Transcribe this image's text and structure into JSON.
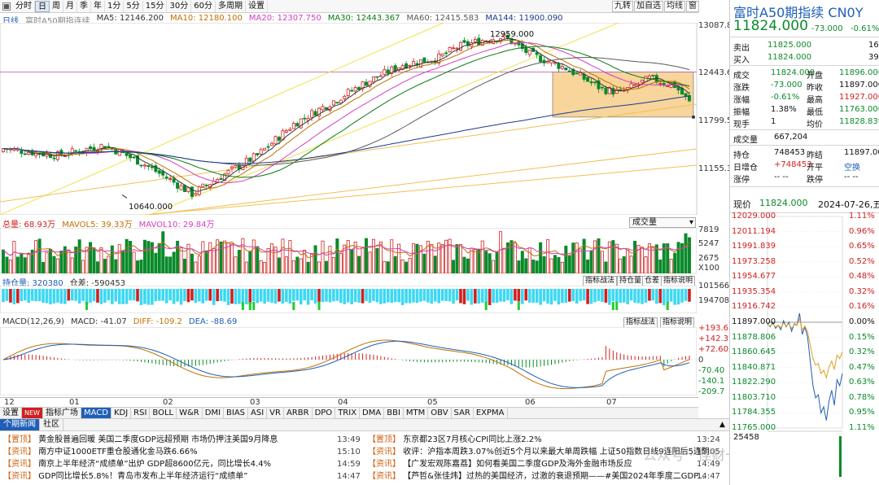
{
  "toolbar": {
    "tabs": [
      "分时",
      "日",
      "周",
      "月",
      "季",
      "年",
      "1分",
      "5分",
      "15分",
      "30分",
      "60分",
      "多周期",
      "设置"
    ],
    "active": "日",
    "right_tools": [
      "九转",
      "加自选",
      "均线",
      "窗"
    ]
  },
  "main_legend": {
    "period": "日线",
    "name": "富时A50期指连续",
    "ma5": "MA5: 12146.200",
    "ma10": "MA10: 12180.100",
    "ma20": "MA20: 12307.750",
    "ma30": "MA30: 12443.367",
    "ma60": "MA60: 12415.583",
    "ma144": "MA144: 11900.090"
  },
  "price_axis": [
    "13087.83",
    "12443.66",
    "11799.50",
    "11155.33"
  ],
  "annotations": {
    "high": "12959.000",
    "low": "10640.000"
  },
  "volume": {
    "legend": {
      "total": "总量: 68.93万",
      "mavol5": "MAVOL5: 39.33万",
      "mavol10": "MAVOL10: 29.84万"
    },
    "dropdown": "成交量",
    "axis": [
      "7819",
      "5247",
      "2675",
      "X100"
    ]
  },
  "oi": {
    "legend": {
      "oi": "持仓量: 320380",
      "diff": "仓差: -590453"
    },
    "buttons": [
      "指标战法",
      "持仓量",
      "仓差",
      "指标说明"
    ],
    "axis": [
      "1015661",
      "194708"
    ]
  },
  "macd": {
    "legend": {
      "params": "MACD(12,26,9)",
      "macd": "MACD: -41.07",
      "diff": "DIFF: -109.2",
      "dea": "DEA: -88.69"
    },
    "buttons": [
      "指标战法",
      "指标说明"
    ],
    "axis": [
      "+193.6",
      "+142.3",
      "+72.60",
      "0",
      "-70.40",
      "-140.1",
      "-209.7"
    ]
  },
  "time_axis": [
    "12",
    "01",
    "02",
    "03",
    "04",
    "05",
    "06",
    "07"
  ],
  "indicator_tabs": [
    "设置",
    "NEW",
    "指标广场",
    "MACD",
    "KDJ",
    "RSI",
    "BOLL",
    "W&R",
    "DMI",
    "BIAS",
    "ASI",
    "VR",
    "ARBR",
    "DPO",
    "TRIX",
    "DMA",
    "BBI",
    "MTM",
    "OBV",
    "SAR",
    "EXPMA"
  ],
  "indicator_active": "MACD",
  "news": {
    "tabs": [
      "个期新闻",
      "社区"
    ],
    "left": [
      {
        "tag": "【置顶】",
        "text": "黄金股普遍回暖 美国二季度GDP远超预期 市场仍押注美国9月降息",
        "time": "13:49"
      },
      {
        "tag": "【资讯】",
        "text": "南方中证1000ETF重仓股通化金马跌6.66%",
        "time": "15:10"
      },
      {
        "tag": "【资讯】",
        "text": "南京上半年经济“成绩单”出炉 GDP超8600亿元，同比增长4.4%",
        "time": "14:59"
      },
      {
        "tag": "【资讯】",
        "text": "GDP同比增长5.8%！青岛市发布上半年经济运行“成绩单”",
        "time": "14:47"
      }
    ],
    "right": [
      {
        "tag": "【置顶】",
        "text": "东京都23区7月核心CPI同比上涨2.2%",
        "time": "13:24"
      },
      {
        "tag": "【资讯】",
        "text": "收评：沪指本周跌3.07%创近5个月以来最大单周跌幅 上证50指数日线9连阳后5连阴",
        "time": "15:05"
      },
      {
        "tag": "【资讯】",
        "text": "【广发宏观陈嘉荔】如何看美国二季度GDP及海外金融市场反应",
        "time": "14:49"
      },
      {
        "tag": "【资讯】",
        "text": "【芦哲&张佳炜】过热的美国经济，过激的衰退预期——#美国2024年季度二GDP...",
        "time": "14:47"
      }
    ]
  },
  "watermark": "公众号 · 佳财一分钟",
  "quote": {
    "title": "富时A50期指续 CN0Y",
    "price": "11824.000",
    "change": "-73.000",
    "pct": "-0.61%",
    "sell": {
      "label": "卖出",
      "price": "11825.000",
      "vol": "16"
    },
    "buy": {
      "label": "买入",
      "price": "11824.000",
      "vol": "39"
    },
    "rows": [
      {
        "l1": "成交",
        "v1": "11824.000",
        "l2": "开盘",
        "v2": "11896.000"
      },
      {
        "l1": "涨跌",
        "v1": "-73.000",
        "l2": "昨收",
        "v2": "11897.000"
      },
      {
        "l1": "涨幅",
        "v1": "-0.61%",
        "l2": "最高",
        "v2": "11927.000"
      },
      {
        "l1": "振幅",
        "v1": "1.38%",
        "l2": "最低",
        "v2": "11763.000"
      },
      {
        "l1": "现手",
        "v1": "1",
        "l2": "均价",
        "v2": "11828.839"
      }
    ],
    "volume_label": "成交量",
    "volume": "667,204",
    "rows2": [
      {
        "l1": "持仓",
        "v1": "748453",
        "l2": "昨结",
        "v2": "11897.000"
      },
      {
        "l1": "日增仓",
        "v1": "+748453",
        "l2": "开平",
        "v2": "空换"
      },
      {
        "l1": "涨停",
        "v1": "-- --",
        "l2": "跌停",
        "v2": "-- --"
      }
    ],
    "now_label": "现价",
    "now_price": "11824.000",
    "date": "2024-07-26,五",
    "mini_left": [
      "12029.000",
      "12011.194",
      "11991.839",
      "11973.258",
      "11954.677",
      "11935.354",
      "11916.742",
      "11897.000",
      "11878.806",
      "11860.645",
      "11840.871",
      "11822.290",
      "11803.710",
      "11784.355",
      "11765.000"
    ],
    "mini_right": [
      "1.11%",
      "0.96%",
      "0.65%",
      "0.52%",
      "0.48%",
      "0.32%",
      "0.16%",
      "0.00%",
      "0.15%",
      "0.32%",
      "0.47%",
      "0.63%",
      "0.78%",
      "0.95%",
      "1.11%"
    ],
    "mini_vol": "25458"
  },
  "colors": {
    "up": "#d02020",
    "down": "#0a8a2a",
    "ma144": "#1b3c8c",
    "box": "#f5c77a",
    "brand": "#1f5fb8"
  }
}
